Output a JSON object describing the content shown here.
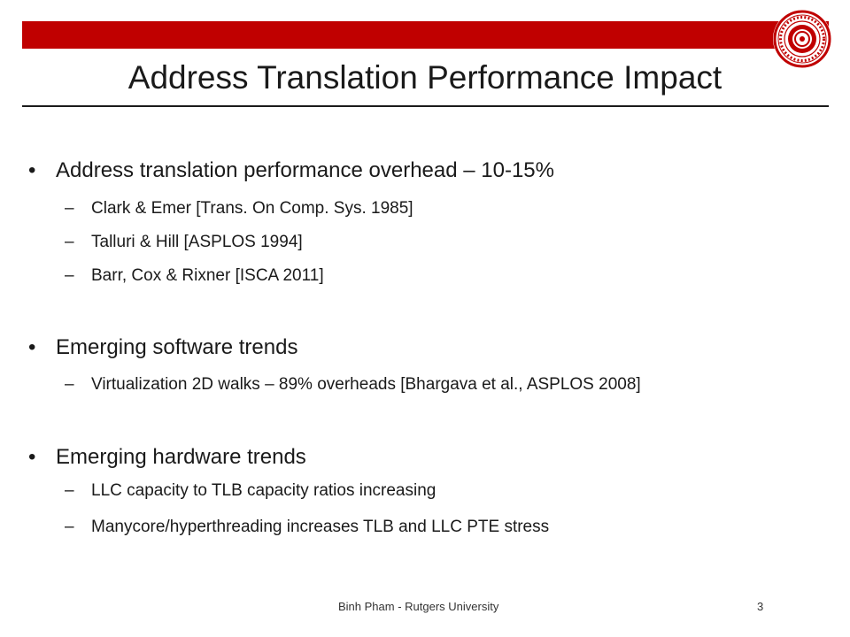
{
  "slide": {
    "title": "Address Translation Performance Impact",
    "bullet_glyph": "•",
    "dash_glyph": "–",
    "bullets": [
      {
        "text": "Address translation performance overhead – 10-15%",
        "subs": [
          "Clark & Emer [Trans. On Comp. Sys. 1985]",
          "Talluri & Hill [ASPLOS 1994]",
          "Barr, Cox & Rixner [ISCA 2011]"
        ]
      },
      {
        "text": "Emerging software trends",
        "subs": [
          "Virtualization 2D walks – 89% overheads [Bhargava et al., ASPLOS 2008]"
        ]
      },
      {
        "text": "Emerging hardware trends",
        "subs": [
          "LLC capacity to TLB capacity ratios increasing",
          "Manycore/hyperthreading increases TLB and LLC PTE stress"
        ]
      }
    ],
    "footer_text": "Binh Pham - Rutgers University",
    "page_number": "3"
  },
  "colors": {
    "header_bar": "#c00000",
    "text": "#1a1a1a"
  },
  "icons": {
    "logo": "rutgers-seal-icon"
  }
}
